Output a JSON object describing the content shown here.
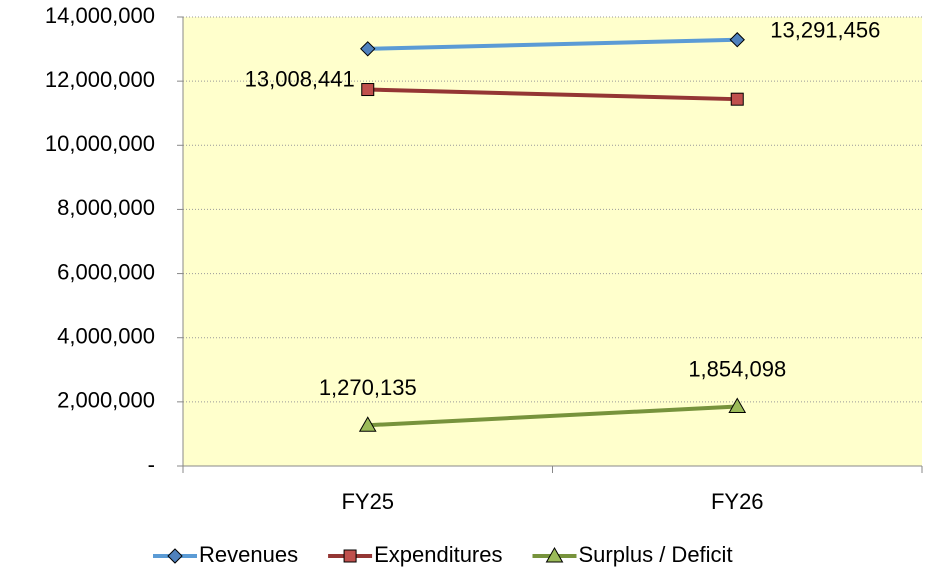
{
  "chart_data": {
    "type": "line",
    "categories": [
      "FY25",
      "FY26"
    ],
    "series": [
      {
        "name": "Revenues",
        "color": "#4f81bd",
        "line_color": "#5b9bd5",
        "marker": "diamond",
        "values": [
          13008441,
          13291456
        ],
        "value_labels": [
          "13,008,441",
          "13,291,456"
        ]
      },
      {
        "name": "Expenditures",
        "color": "#c0504d",
        "line_color": "#943634",
        "marker": "square",
        "values": [
          11738306,
          11437358
        ]
      },
      {
        "name": "Surplus / Deficit",
        "color": "#9bbb59",
        "line_color": "#77933c",
        "marker": "triangle",
        "values": [
          1270135,
          1854098
        ],
        "value_labels": [
          "1,270,135",
          "1,854,098"
        ]
      }
    ],
    "ylim": [
      0,
      14000000
    ],
    "yticks": [
      {
        "value": 0,
        "label": "-"
      },
      {
        "value": 2000000,
        "label": "2,000,000"
      },
      {
        "value": 4000000,
        "label": "4,000,000"
      },
      {
        "value": 6000000,
        "label": "6,000,000"
      },
      {
        "value": 8000000,
        "label": "8,000,000"
      },
      {
        "value": 10000000,
        "label": "10,000,000"
      },
      {
        "value": 12000000,
        "label": "12,000,000"
      },
      {
        "value": 14000000,
        "label": "14,000,000"
      }
    ],
    "grid": true,
    "plot_background": "#ffffcc",
    "legend": "bottom"
  }
}
